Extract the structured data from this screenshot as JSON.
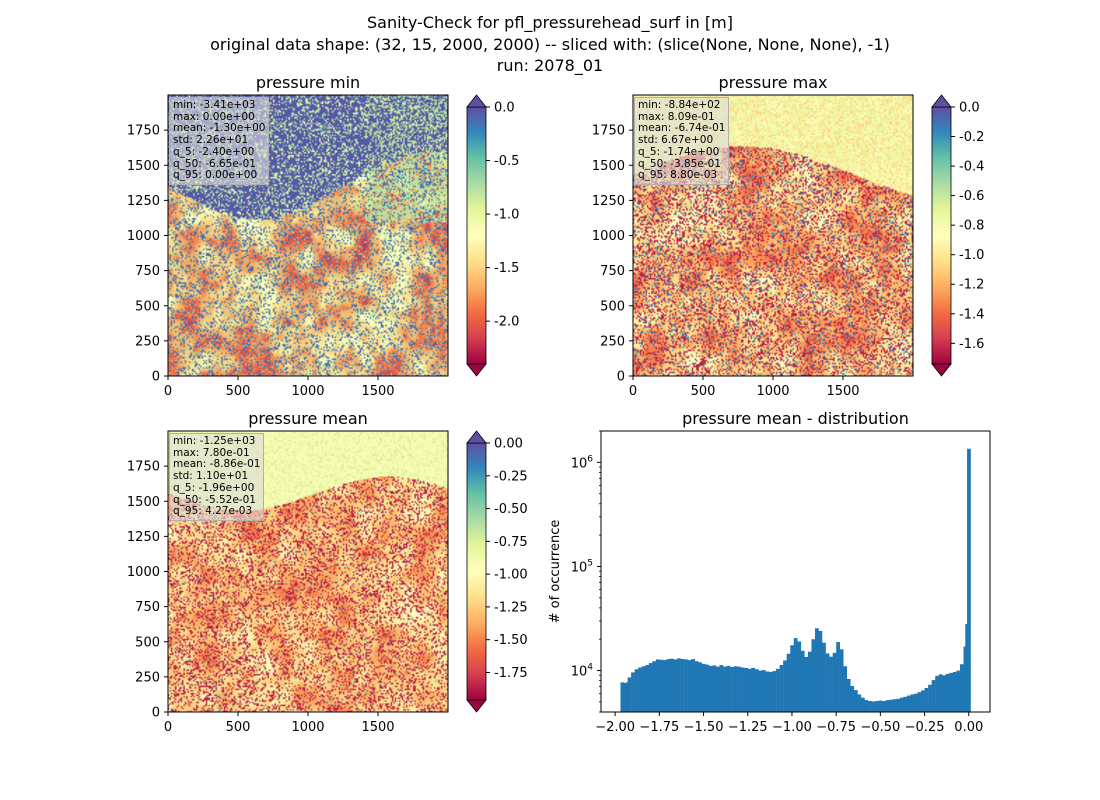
{
  "suptitle": {
    "line1": "Sanity-Check for pfl_pressurehead_surf in [m]",
    "line2": "original data shape: (32, 15, 2000, 2000) -- sliced with: (slice(None, None, None), -1)",
    "line3": "run: 2078_01"
  },
  "colormap": "Spectral",
  "chart_data": [
    {
      "type": "heatmap",
      "title": "pressure min",
      "xlim": [
        0,
        2000
      ],
      "ylim": [
        0,
        2000
      ],
      "x_ticks": [
        "0",
        "500",
        "1000",
        "1500"
      ],
      "y_ticks": [
        "0",
        "250",
        "500",
        "750",
        "1000",
        "1250",
        "1500",
        "1750"
      ],
      "colorbar": {
        "range": [
          -2.4,
          0.0
        ],
        "ticks": [
          "0.0",
          "-0.5",
          "-1.0",
          "-1.5",
          "-2.0"
        ],
        "extend": "both"
      },
      "stats": [
        "min: -3.41e+03",
        "max: 0.00e+00",
        "mean: -1.30e+00",
        "std: 2.26e+01",
        "q_5: -2.40e+00",
        "q_50: -6.65e-01",
        "q_95: 0.00e+00"
      ]
    },
    {
      "type": "heatmap",
      "title": "pressure max",
      "xlim": [
        0,
        2000
      ],
      "ylim": [
        0,
        2000
      ],
      "x_ticks": [
        "0",
        "500",
        "1000",
        "1500"
      ],
      "y_ticks": [
        "0",
        "250",
        "500",
        "750",
        "1000",
        "1250",
        "1500",
        "1750"
      ],
      "colorbar": {
        "range": [
          -1.74,
          0.0
        ],
        "ticks": [
          "0.0",
          "-0.2",
          "-0.4",
          "-0.6",
          "-0.8",
          "-1.0",
          "-1.2",
          "-1.4",
          "-1.6"
        ],
        "extend": "both"
      },
      "stats": [
        "min: -8.84e+02",
        "max: 8.09e-01",
        "mean: -6.74e-01",
        "std: 6.67e+00",
        "q_5: -1.74e+00",
        "q_50: -3.85e-01",
        "q_95: 8.80e-03"
      ]
    },
    {
      "type": "heatmap",
      "title": "pressure mean",
      "xlim": [
        0,
        2000
      ],
      "ylim": [
        0,
        2000
      ],
      "x_ticks": [
        "0",
        "500",
        "1000",
        "1500"
      ],
      "y_ticks": [
        "0",
        "250",
        "500",
        "750",
        "1000",
        "1250",
        "1500",
        "1750"
      ],
      "colorbar": {
        "range": [
          -1.96,
          0.0
        ],
        "ticks": [
          "0.00",
          "-0.25",
          "-0.50",
          "-0.75",
          "-1.00",
          "-1.25",
          "-1.50",
          "-1.75"
        ],
        "extend": "both"
      },
      "stats": [
        "min: -1.25e+03",
        "max: 7.80e-01",
        "mean: -8.86e-01",
        "std: 1.10e+01",
        "q_5: -1.96e+00",
        "q_50: -5.52e-01",
        "q_95: 4.27e-03"
      ]
    },
    {
      "type": "bar",
      "title": "pressure mean - distribution",
      "ylabel": "# of occurrence",
      "xlim": [
        -2.08,
        0.12
      ],
      "ylog": true,
      "ylim": [
        4000,
        2000000
      ],
      "x_ticks": [
        "−2.00",
        "−1.75",
        "−1.50",
        "−1.25",
        "−1.00",
        "−0.75",
        "−0.50",
        "−0.25",
        "0.00"
      ],
      "x_tick_values": [
        -2.0,
        -1.75,
        -1.5,
        -1.25,
        -1.0,
        -0.75,
        -0.5,
        -0.25,
        0.0
      ],
      "y_ticks": [
        {
          "value": 10000,
          "base": "10",
          "exp": "4"
        },
        {
          "value": 100000,
          "base": "10",
          "exp": "5"
        },
        {
          "value": 1000000,
          "base": "10",
          "exp": "6"
        }
      ],
      "bar_color": "#1f77b4",
      "bins": [
        {
          "x": -1.96,
          "y": 7700
        },
        {
          "x": -1.95,
          "y": 7600
        },
        {
          "x": -1.93,
          "y": 7700
        },
        {
          "x": -1.92,
          "y": 8600
        },
        {
          "x": -1.9,
          "y": 9600
        },
        {
          "x": -1.88,
          "y": 10300
        },
        {
          "x": -1.86,
          "y": 10700
        },
        {
          "x": -1.84,
          "y": 11000
        },
        {
          "x": -1.82,
          "y": 11300
        },
        {
          "x": -1.8,
          "y": 11800
        },
        {
          "x": -1.78,
          "y": 12300
        },
        {
          "x": -1.76,
          "y": 12800
        },
        {
          "x": -1.74,
          "y": 12700
        },
        {
          "x": -1.72,
          "y": 12600
        },
        {
          "x": -1.7,
          "y": 12900
        },
        {
          "x": -1.68,
          "y": 13000
        },
        {
          "x": -1.66,
          "y": 12800
        },
        {
          "x": -1.64,
          "y": 13100
        },
        {
          "x": -1.62,
          "y": 12900
        },
        {
          "x": -1.6,
          "y": 12800
        },
        {
          "x": -1.58,
          "y": 12600
        },
        {
          "x": -1.56,
          "y": 12900
        },
        {
          "x": -1.54,
          "y": 12300
        },
        {
          "x": -1.52,
          "y": 12000
        },
        {
          "x": -1.5,
          "y": 11600
        },
        {
          "x": -1.48,
          "y": 11400
        },
        {
          "x": -1.46,
          "y": 11100
        },
        {
          "x": -1.44,
          "y": 11200
        },
        {
          "x": -1.42,
          "y": 10900
        },
        {
          "x": -1.4,
          "y": 11300
        },
        {
          "x": -1.38,
          "y": 10900
        },
        {
          "x": -1.36,
          "y": 11100
        },
        {
          "x": -1.34,
          "y": 10800
        },
        {
          "x": -1.32,
          "y": 11000
        },
        {
          "x": -1.3,
          "y": 10900
        },
        {
          "x": -1.28,
          "y": 10700
        },
        {
          "x": -1.26,
          "y": 10600
        },
        {
          "x": -1.24,
          "y": 10400
        },
        {
          "x": -1.22,
          "y": 10600
        },
        {
          "x": -1.2,
          "y": 10300
        },
        {
          "x": -1.18,
          "y": 10000
        },
        {
          "x": -1.16,
          "y": 10100
        },
        {
          "x": -1.14,
          "y": 9800
        },
        {
          "x": -1.12,
          "y": 9700
        },
        {
          "x": -1.1,
          "y": 9900
        },
        {
          "x": -1.08,
          "y": 10400
        },
        {
          "x": -1.06,
          "y": 11300
        },
        {
          "x": -1.04,
          "y": 12500
        },
        {
          "x": -1.02,
          "y": 14500
        },
        {
          "x": -1.0,
          "y": 17500
        },
        {
          "x": -0.98,
          "y": 20500
        },
        {
          "x": -0.96,
          "y": 19000
        },
        {
          "x": -0.94,
          "y": 15500
        },
        {
          "x": -0.92,
          "y": 13500
        },
        {
          "x": -0.9,
          "y": 15200
        },
        {
          "x": -0.88,
          "y": 20000
        },
        {
          "x": -0.86,
          "y": 25500
        },
        {
          "x": -0.84,
          "y": 24000
        },
        {
          "x": -0.82,
          "y": 18500
        },
        {
          "x": -0.8,
          "y": 14600
        },
        {
          "x": -0.78,
          "y": 13600
        },
        {
          "x": -0.76,
          "y": 14800
        },
        {
          "x": -0.74,
          "y": 18800
        },
        {
          "x": -0.72,
          "y": 16000
        },
        {
          "x": -0.7,
          "y": 11000
        },
        {
          "x": -0.68,
          "y": 8300
        },
        {
          "x": -0.66,
          "y": 7100
        },
        {
          "x": -0.64,
          "y": 6500
        },
        {
          "x": -0.62,
          "y": 5900
        },
        {
          "x": -0.6,
          "y": 5500
        },
        {
          "x": -0.58,
          "y": 5200
        },
        {
          "x": -0.56,
          "y": 5100
        },
        {
          "x": -0.54,
          "y": 5050
        },
        {
          "x": -0.52,
          "y": 5100
        },
        {
          "x": -0.5,
          "y": 5150
        },
        {
          "x": -0.48,
          "y": 5100
        },
        {
          "x": -0.46,
          "y": 5200
        },
        {
          "x": -0.44,
          "y": 5250
        },
        {
          "x": -0.42,
          "y": 5300
        },
        {
          "x": -0.4,
          "y": 5350
        },
        {
          "x": -0.38,
          "y": 5500
        },
        {
          "x": -0.36,
          "y": 5600
        },
        {
          "x": -0.34,
          "y": 5750
        },
        {
          "x": -0.32,
          "y": 5900
        },
        {
          "x": -0.3,
          "y": 6000
        },
        {
          "x": -0.28,
          "y": 6200
        },
        {
          "x": -0.26,
          "y": 6450
        },
        {
          "x": -0.24,
          "y": 6800
        },
        {
          "x": -0.22,
          "y": 7300
        },
        {
          "x": -0.2,
          "y": 8100
        },
        {
          "x": -0.18,
          "y": 8900
        },
        {
          "x": -0.16,
          "y": 9200
        },
        {
          "x": -0.14,
          "y": 9000
        },
        {
          "x": -0.12,
          "y": 9300
        },
        {
          "x": -0.1,
          "y": 9500
        },
        {
          "x": -0.08,
          "y": 9700
        },
        {
          "x": -0.06,
          "y": 10000
        },
        {
          "x": -0.04,
          "y": 11500
        },
        {
          "x": -0.02,
          "y": 17000
        },
        {
          "x": -0.01,
          "y": 28000
        },
        {
          "x": 0.0,
          "y": 1350000
        }
      ]
    }
  ]
}
